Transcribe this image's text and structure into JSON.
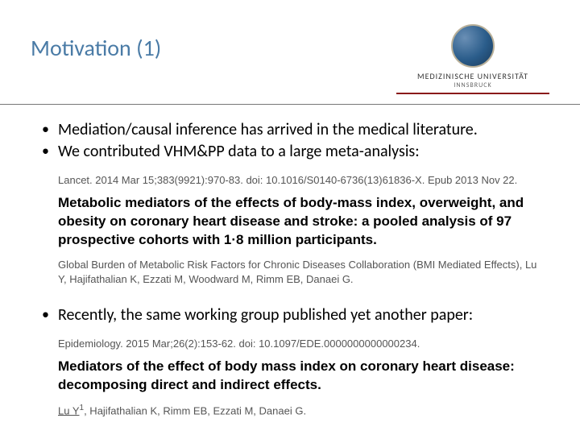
{
  "header": {
    "title": "Motivation (1)",
    "university_name": "MEDIZINISCHE UNIVERSITÄT",
    "university_sub": "INNSBRUCK"
  },
  "bullets_top": [
    "Mediation/causal inference has arrived in the medical literature.",
    "We contributed VHM&PP data to a large meta-analysis:"
  ],
  "citation1": {
    "meta": "Lancet. 2014 Mar 15;383(9921):970-83. doi: 10.1016/S0140-6736(13)61836-X. Epub 2013 Nov 22.",
    "title": "Metabolic mediators of the effects of body-mass index, overweight, and obesity on coronary heart disease and stroke: a pooled analysis of 97 prospective cohorts with 1·8 million participants.",
    "authors": "Global Burden of Metabolic Risk Factors for Chronic Diseases Collaboration (BMI Mediated Effects), Lu Y, Hajifathalian K, Ezzati M, Woodward M, Rimm EB, Danaei G."
  },
  "bullets_mid": [
    "Recently, the same working group published yet another paper:"
  ],
  "citation2": {
    "meta": "Epidemiology. 2015 Mar;26(2):153-62. doi: 10.1097/EDE.0000000000000234.",
    "title": "Mediators of the effect of body mass index on coronary heart disease: decomposing direct and indirect effects.",
    "authors_html": "Lu Y",
    "authors_suffix": ", Hajifathalian K, Rimm EB, Ezzati M, Danaei G."
  },
  "colors": {
    "title_color": "#4a7ba6",
    "underline_color": "#8a1a1a",
    "hr_color": "#777777",
    "meta_color": "#555555",
    "background": "#ffffff"
  },
  "typography": {
    "title_fontsize": 28,
    "bullet_fontsize": 20,
    "cite_title_fontsize": 17,
    "cite_meta_fontsize": 13
  }
}
